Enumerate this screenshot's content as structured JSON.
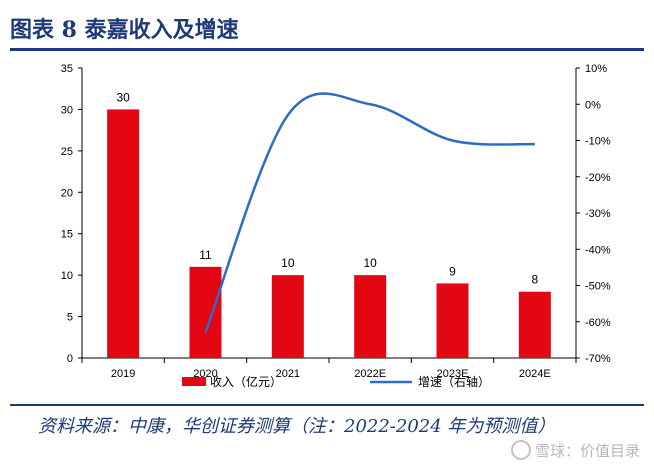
{
  "title": "图表 8  泰嘉收入及增速",
  "source": "资料来源：中康，华创证券测算（注：2022-2024 年为预测值）",
  "watermark": "雪球：价值目录",
  "colors": {
    "bar": "#e30613",
    "line": "#2e6bc4",
    "brand": "#1c3a7a"
  },
  "chart_data": {
    "type": "bar+line",
    "categories": [
      "2019",
      "2020",
      "2021",
      "2022E",
      "2023E",
      "2024E"
    ],
    "series": [
      {
        "name": "收入（亿元）",
        "type": "bar",
        "axis": "left",
        "values": [
          30,
          11,
          10,
          10,
          9,
          8
        ],
        "labels": [
          "30",
          "11",
          "10",
          "10",
          "9",
          "8"
        ]
      },
      {
        "name": "增速（右轴）",
        "type": "line",
        "axis": "right",
        "values": [
          null,
          -63,
          -3,
          0,
          -10,
          -11
        ]
      }
    ],
    "left_axis": {
      "min": 0,
      "max": 35,
      "step": 5,
      "ticks": [
        "0",
        "5",
        "10",
        "15",
        "20",
        "25",
        "30",
        "35"
      ]
    },
    "right_axis": {
      "min": -70,
      "max": 10,
      "step": 10,
      "ticks": [
        "-70%",
        "-60%",
        "-50%",
        "-40%",
        "-30%",
        "-20%",
        "-10%",
        "0%",
        "10%"
      ]
    },
    "legend": {
      "position": "bottom",
      "items": [
        "收入（亿元）",
        "增速（右轴）"
      ]
    }
  }
}
